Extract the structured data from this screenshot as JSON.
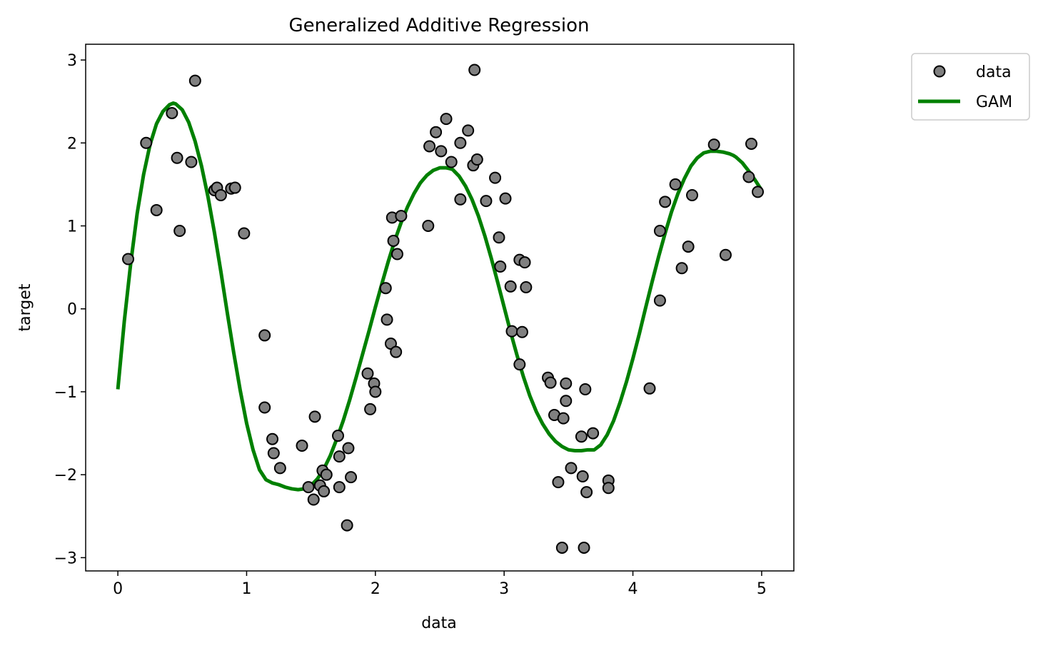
{
  "chart_data": {
    "type": "scatter",
    "title": "Generalized Additive Regression",
    "xlabel": "data",
    "ylabel": "target",
    "xlim": [
      -0.25,
      5.25
    ],
    "ylim": [
      -3.16,
      3.19
    ],
    "xticks": [
      0,
      1,
      2,
      3,
      4,
      5
    ],
    "yticks": [
      -3,
      -2,
      -1,
      0,
      1,
      2,
      3
    ],
    "xtick_labels": [
      "0",
      "1",
      "2",
      "3",
      "4",
      "5"
    ],
    "ytick_labels": [
      "−3",
      "−2",
      "−1",
      "0",
      "1",
      "2",
      "3"
    ],
    "grid": false,
    "legend_position": "upper right, outside plot area",
    "series": [
      {
        "name": "data",
        "kind": "scatter",
        "color": "#808080",
        "edgecolor": "#000000",
        "points": [
          [
            0.08,
            0.6
          ],
          [
            0.22,
            2.0
          ],
          [
            0.3,
            1.19
          ],
          [
            0.42,
            2.36
          ],
          [
            0.46,
            1.82
          ],
          [
            0.48,
            0.94
          ],
          [
            0.57,
            1.77
          ],
          [
            0.6,
            2.75
          ],
          [
            0.75,
            1.43
          ],
          [
            0.77,
            1.46
          ],
          [
            0.8,
            1.37
          ],
          [
            0.88,
            1.45
          ],
          [
            0.91,
            1.46
          ],
          [
            0.98,
            0.91
          ],
          [
            1.14,
            -0.32
          ],
          [
            1.14,
            -1.19
          ],
          [
            1.2,
            -1.57
          ],
          [
            1.21,
            -1.74
          ],
          [
            1.26,
            -1.92
          ],
          [
            1.43,
            -1.65
          ],
          [
            1.48,
            -2.15
          ],
          [
            1.52,
            -2.3
          ],
          [
            1.53,
            -1.3
          ],
          [
            1.57,
            -2.13
          ],
          [
            1.59,
            -1.95
          ],
          [
            1.6,
            -2.2
          ],
          [
            1.62,
            -2.0
          ],
          [
            1.71,
            -1.53
          ],
          [
            1.72,
            -2.15
          ],
          [
            1.72,
            -1.78
          ],
          [
            1.78,
            -2.61
          ],
          [
            1.79,
            -1.68
          ],
          [
            1.81,
            -2.03
          ],
          [
            1.94,
            -0.78
          ],
          [
            1.96,
            -1.21
          ],
          [
            1.99,
            -0.9
          ],
          [
            2.0,
            -1.0
          ],
          [
            2.08,
            0.25
          ],
          [
            2.09,
            -0.13
          ],
          [
            2.12,
            -0.42
          ],
          [
            2.13,
            1.1
          ],
          [
            2.14,
            0.82
          ],
          [
            2.16,
            -0.52
          ],
          [
            2.17,
            0.66
          ],
          [
            2.2,
            1.12
          ],
          [
            2.41,
            1.0
          ],
          [
            2.42,
            1.96
          ],
          [
            2.47,
            2.13
          ],
          [
            2.51,
            1.9
          ],
          [
            2.55,
            2.29
          ],
          [
            2.59,
            1.77
          ],
          [
            2.66,
            2.0
          ],
          [
            2.66,
            1.32
          ],
          [
            2.72,
            2.15
          ],
          [
            2.76,
            1.73
          ],
          [
            2.77,
            2.88
          ],
          [
            2.79,
            1.8
          ],
          [
            2.86,
            1.3
          ],
          [
            2.93,
            1.58
          ],
          [
            2.96,
            0.86
          ],
          [
            2.97,
            0.51
          ],
          [
            3.01,
            1.33
          ],
          [
            3.05,
            0.27
          ],
          [
            3.06,
            -0.27
          ],
          [
            3.12,
            0.59
          ],
          [
            3.12,
            -0.67
          ],
          [
            3.14,
            -0.28
          ],
          [
            3.16,
            0.56
          ],
          [
            3.17,
            0.26
          ],
          [
            3.34,
            -0.83
          ],
          [
            3.36,
            -0.89
          ],
          [
            3.39,
            -1.28
          ],
          [
            3.42,
            -2.09
          ],
          [
            3.45,
            -2.88
          ],
          [
            3.46,
            -1.32
          ],
          [
            3.48,
            -0.9
          ],
          [
            3.48,
            -1.11
          ],
          [
            3.52,
            -1.92
          ],
          [
            3.6,
            -1.54
          ],
          [
            3.61,
            -2.02
          ],
          [
            3.62,
            -2.88
          ],
          [
            3.63,
            -0.97
          ],
          [
            3.64,
            -2.21
          ],
          [
            3.69,
            -1.5
          ],
          [
            3.81,
            -2.07
          ],
          [
            3.81,
            -2.16
          ],
          [
            4.13,
            -0.96
          ],
          [
            4.21,
            0.1
          ],
          [
            4.21,
            0.94
          ],
          [
            4.25,
            1.29
          ],
          [
            4.33,
            1.5
          ],
          [
            4.38,
            0.49
          ],
          [
            4.43,
            0.75
          ],
          [
            4.46,
            1.37
          ],
          [
            4.63,
            1.98
          ],
          [
            4.72,
            0.65
          ],
          [
            4.9,
            1.59
          ],
          [
            4.92,
            1.99
          ],
          [
            4.97,
            1.41
          ]
        ]
      },
      {
        "name": "GAM",
        "kind": "line",
        "color": "#008000",
        "x": [
          0.0,
          0.05,
          0.1,
          0.15,
          0.2,
          0.25,
          0.3,
          0.35,
          0.4,
          0.43,
          0.45,
          0.5,
          0.55,
          0.6,
          0.65,
          0.7,
          0.75,
          0.8,
          0.85,
          0.9,
          0.95,
          1.0,
          1.05,
          1.1,
          1.15,
          1.2,
          1.25,
          1.3,
          1.35,
          1.4,
          1.45,
          1.5,
          1.55,
          1.6,
          1.65,
          1.7,
          1.75,
          1.8,
          1.85,
          1.9,
          1.95,
          2.0,
          2.05,
          2.1,
          2.15,
          2.2,
          2.25,
          2.3,
          2.35,
          2.4,
          2.45,
          2.5,
          2.55,
          2.58,
          2.6,
          2.65,
          2.7,
          2.75,
          2.8,
          2.85,
          2.9,
          2.95,
          3.0,
          3.05,
          3.1,
          3.15,
          3.2,
          3.25,
          3.3,
          3.35,
          3.4,
          3.45,
          3.5,
          3.55,
          3.6,
          3.65,
          3.7,
          3.75,
          3.8,
          3.85,
          3.9,
          3.95,
          4.0,
          4.05,
          4.1,
          4.15,
          4.2,
          4.25,
          4.3,
          4.35,
          4.4,
          4.45,
          4.5,
          4.55,
          4.6,
          4.65,
          4.7,
          4.75,
          4.78,
          4.8,
          4.85,
          4.9,
          4.95,
          5.0
        ],
        "y": [
          -0.97,
          -0.15,
          0.55,
          1.15,
          1.62,
          1.98,
          2.23,
          2.38,
          2.46,
          2.48,
          2.47,
          2.4,
          2.25,
          2.02,
          1.72,
          1.35,
          0.92,
          0.45,
          -0.05,
          -0.53,
          -0.98,
          -1.38,
          -1.7,
          -1.94,
          -2.06,
          -2.1,
          -2.12,
          -2.15,
          -2.17,
          -2.18,
          -2.17,
          -2.13,
          -2.05,
          -1.93,
          -1.77,
          -1.57,
          -1.35,
          -1.1,
          -0.83,
          -0.55,
          -0.27,
          0.02,
          0.3,
          0.57,
          0.82,
          1.04,
          1.23,
          1.39,
          1.52,
          1.61,
          1.67,
          1.7,
          1.7,
          1.69,
          1.68,
          1.6,
          1.48,
          1.32,
          1.12,
          0.88,
          0.61,
          0.32,
          0.02,
          -0.28,
          -0.56,
          -0.82,
          -1.05,
          -1.24,
          -1.39,
          -1.51,
          -1.6,
          -1.66,
          -1.7,
          -1.71,
          -1.71,
          -1.7,
          -1.7,
          -1.64,
          -1.52,
          -1.35,
          -1.13,
          -0.88,
          -0.6,
          -0.3,
          0.02,
          0.33,
          0.63,
          0.91,
          1.17,
          1.39,
          1.57,
          1.72,
          1.82,
          1.88,
          1.9,
          1.9,
          1.89,
          1.87,
          1.85,
          1.83,
          1.76,
          1.66,
          1.55,
          1.43
        ]
      }
    ]
  }
}
